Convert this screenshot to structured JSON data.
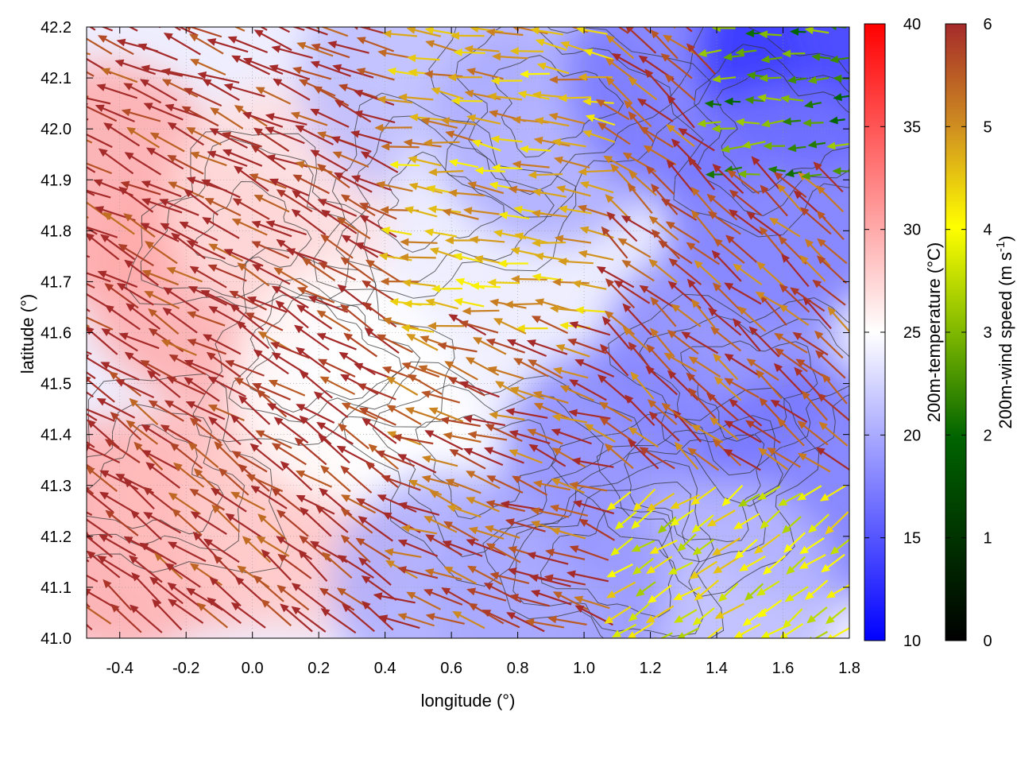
{
  "chart_data": {
    "type": "heatmap",
    "title": "",
    "xlabel": "longitude (°)",
    "ylabel": "latitude (°)",
    "xlim": [
      -0.5,
      1.8
    ],
    "ylim": [
      41.0,
      42.2
    ],
    "x_ticks": [
      "-0.4",
      "-0.2",
      "0.0",
      "0.2",
      "0.4",
      "0.6",
      "0.8",
      "1.0",
      "1.2",
      "1.4",
      "1.6",
      "1.8"
    ],
    "y_ticks": [
      "41.0",
      "41.1",
      "41.2",
      "41.3",
      "41.4",
      "41.5",
      "41.6",
      "41.7",
      "41.8",
      "41.9",
      "42.0",
      "42.1",
      "42.2"
    ],
    "grid": true,
    "layers": [
      "200m-temperature shading",
      "terrain contour lines",
      "200m-wind vectors"
    ],
    "temperature_colorbar": {
      "label": "200m-temperature (°C)",
      "range": [
        10,
        40
      ],
      "ticks": [
        "10",
        "15",
        "20",
        "25",
        "30",
        "35",
        "40"
      ],
      "colors": [
        "#0000ff",
        "#ffffff",
        "#ff0000"
      ]
    },
    "wind_colorbar": {
      "label_main": "200m-wind speed (m s",
      "label_sup": "-1",
      "label_end": ")",
      "range": [
        0,
        6
      ],
      "ticks": [
        "0",
        "1",
        "2",
        "3",
        "4",
        "5",
        "6"
      ],
      "colors": [
        "#000000",
        "#006400",
        "#7fb800",
        "#ffff00",
        "#d09020",
        "#a52a2a"
      ]
    },
    "temperature_regions": [
      {
        "lon": -0.45,
        "lat": 41.9,
        "temp": 30
      },
      {
        "lon": -0.4,
        "lat": 41.2,
        "temp": 30
      },
      {
        "lon": -0.15,
        "lat": 41.7,
        "temp": 30
      },
      {
        "lon": -0.1,
        "lat": 41.25,
        "temp": 29
      },
      {
        "lon": 0.15,
        "lat": 41.25,
        "temp": 28
      },
      {
        "lon": 0.1,
        "lat": 41.85,
        "temp": 27
      },
      {
        "lon": 0.3,
        "lat": 41.5,
        "temp": 25
      },
      {
        "lon": 0.55,
        "lat": 41.45,
        "temp": 25
      },
      {
        "lon": 0.5,
        "lat": 42.1,
        "temp": 21
      },
      {
        "lon": 0.75,
        "lat": 41.8,
        "temp": 24
      },
      {
        "lon": 0.95,
        "lat": 41.6,
        "temp": 24
      },
      {
        "lon": 0.9,
        "lat": 42.0,
        "temp": 20
      },
      {
        "lon": 1.3,
        "lat": 42.1,
        "temp": 17
      },
      {
        "lon": 1.7,
        "lat": 42.15,
        "temp": 13
      },
      {
        "lon": 1.6,
        "lat": 41.85,
        "temp": 17
      },
      {
        "lon": 1.4,
        "lat": 41.55,
        "temp": 18
      },
      {
        "lon": 1.1,
        "lat": 41.35,
        "temp": 18
      },
      {
        "lon": 1.7,
        "lat": 41.3,
        "temp": 17
      },
      {
        "lon": 1.4,
        "lat": 41.08,
        "temp": 21
      },
      {
        "lon": 0.9,
        "lat": 41.1,
        "temp": 19
      },
      {
        "lon": 0.6,
        "lat": 41.1,
        "temp": 20
      }
    ],
    "wind_regimes": [
      {
        "region": "west of 0.5° (all latitudes)",
        "direction": "toward north-west",
        "speed": 6
      },
      {
        "region": "0.4–1.1°, 41.6–42.0°",
        "direction": "toward west",
        "speed": 4.5
      },
      {
        "region": "1.1–1.8°, 41.3–41.9°",
        "direction": "toward north-west",
        "speed": 5.5
      },
      {
        "region": "1.1–1.8°, 41.0–41.3°",
        "direction": "toward south-west",
        "speed": 3.5
      },
      {
        "region": "1.4–1.8°, 41.9–42.2°",
        "direction": "toward west",
        "speed": 2
      }
    ]
  }
}
